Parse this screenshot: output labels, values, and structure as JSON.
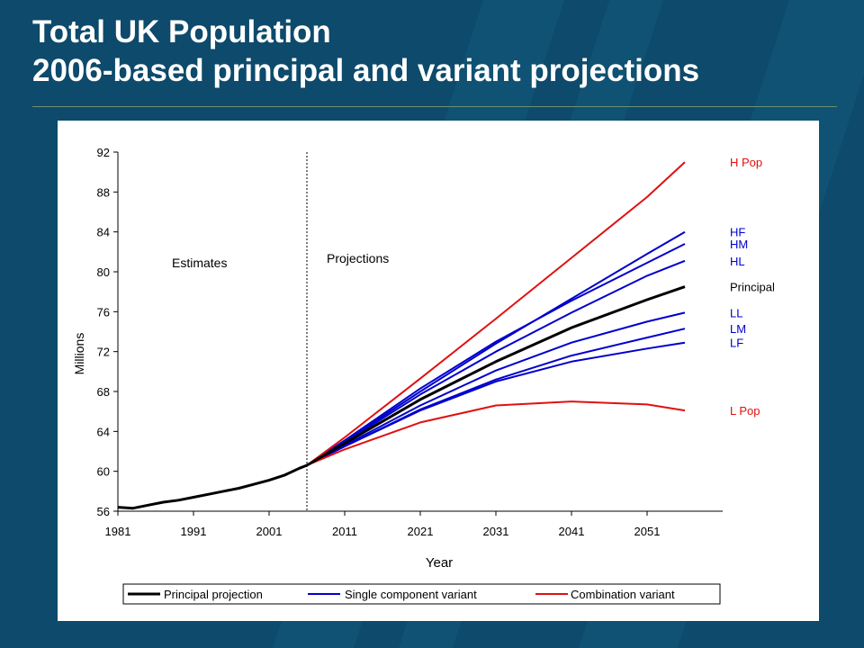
{
  "slide": {
    "title_line1": "Total UK Population",
    "title_line2": "2006-based principal and variant projections"
  },
  "colors": {
    "background": "#0d4a6b",
    "title_text": "#ffffff",
    "principal": "#000000",
    "single_component": "#0000cc",
    "combination": "#e01010"
  },
  "chart_data": {
    "type": "line",
    "title": "",
    "xlabel": "Year",
    "ylabel": "Millions",
    "xlim": [
      1981,
      2061
    ],
    "ylim": [
      56,
      92
    ],
    "xticks": [
      1981,
      1991,
      2001,
      2011,
      2021,
      2031,
      2041,
      2051
    ],
    "yticks": [
      56,
      60,
      64,
      68,
      72,
      76,
      80,
      84,
      88,
      92
    ],
    "grid": false,
    "divider_year": 2006,
    "annotations": {
      "left": "Estimates",
      "right": "Projections"
    },
    "legend": {
      "placement": "bottom",
      "entries": [
        {
          "label": "Principal projection",
          "color": "#000000"
        },
        {
          "label": "Single component variant",
          "color": "#0000cc"
        },
        {
          "label": "Combination variant",
          "color": "#e01010"
        }
      ]
    },
    "estimates": {
      "color": "#000000",
      "points": [
        [
          1981,
          56.4
        ],
        [
          1983,
          56.3
        ],
        [
          1985,
          56.6
        ],
        [
          1987,
          56.9
        ],
        [
          1989,
          57.1
        ],
        [
          1991,
          57.4
        ],
        [
          1993,
          57.7
        ],
        [
          1995,
          58.0
        ],
        [
          1997,
          58.3
        ],
        [
          1999,
          58.7
        ],
        [
          2001,
          59.1
        ],
        [
          2003,
          59.6
        ],
        [
          2005,
          60.3
        ],
        [
          2006,
          60.6
        ]
      ]
    },
    "series": [
      {
        "name": "H Pop",
        "group": "combination",
        "color": "#e01010",
        "width": 2,
        "points": [
          [
            2006,
            60.6
          ],
          [
            2011,
            63.4
          ],
          [
            2021,
            69.3
          ],
          [
            2031,
            75.3
          ],
          [
            2041,
            81.4
          ],
          [
            2051,
            87.5
          ],
          [
            2056,
            91.0
          ]
        ]
      },
      {
        "name": "HF",
        "group": "single",
        "color": "#0000cc",
        "width": 2,
        "points": [
          [
            2006,
            60.6
          ],
          [
            2011,
            63.0
          ],
          [
            2021,
            68.0
          ],
          [
            2031,
            72.8
          ],
          [
            2041,
            77.3
          ],
          [
            2051,
            81.8
          ],
          [
            2056,
            84.0
          ]
        ]
      },
      {
        "name": "HM",
        "group": "single",
        "color": "#0000cc",
        "width": 2,
        "points": [
          [
            2006,
            60.6
          ],
          [
            2011,
            63.1
          ],
          [
            2021,
            68.3
          ],
          [
            2031,
            73.0
          ],
          [
            2041,
            77.1
          ],
          [
            2051,
            80.9
          ],
          [
            2056,
            82.8
          ]
        ]
      },
      {
        "name": "HL",
        "group": "single",
        "color": "#0000cc",
        "width": 2,
        "points": [
          [
            2006,
            60.6
          ],
          [
            2011,
            62.9
          ],
          [
            2021,
            67.7
          ],
          [
            2031,
            72.0
          ],
          [
            2041,
            75.9
          ],
          [
            2051,
            79.6
          ],
          [
            2056,
            81.1
          ]
        ]
      },
      {
        "name": "Principal",
        "group": "principal",
        "color": "#000000",
        "width": 3,
        "points": [
          [
            2006,
            60.6
          ],
          [
            2011,
            62.8
          ],
          [
            2021,
            67.2
          ],
          [
            2031,
            71.0
          ],
          [
            2041,
            74.4
          ],
          [
            2051,
            77.2
          ],
          [
            2056,
            78.5
          ]
        ]
      },
      {
        "name": "LL",
        "group": "single",
        "color": "#0000cc",
        "width": 2,
        "points": [
          [
            2006,
            60.6
          ],
          [
            2011,
            62.6
          ],
          [
            2021,
            66.6
          ],
          [
            2031,
            70.1
          ],
          [
            2041,
            72.9
          ],
          [
            2051,
            75.0
          ],
          [
            2056,
            75.9
          ]
        ]
      },
      {
        "name": "LM",
        "group": "single",
        "color": "#0000cc",
        "width": 2,
        "points": [
          [
            2006,
            60.6
          ],
          [
            2011,
            62.5
          ],
          [
            2021,
            66.2
          ],
          [
            2031,
            69.2
          ],
          [
            2041,
            71.6
          ],
          [
            2051,
            73.4
          ],
          [
            2056,
            74.3
          ]
        ]
      },
      {
        "name": "LF",
        "group": "single",
        "color": "#0000cc",
        "width": 2,
        "points": [
          [
            2006,
            60.6
          ],
          [
            2011,
            62.5
          ],
          [
            2021,
            66.1
          ],
          [
            2031,
            69.0
          ],
          [
            2041,
            71.0
          ],
          [
            2051,
            72.3
          ],
          [
            2056,
            72.9
          ]
        ]
      },
      {
        "name": "L Pop",
        "group": "combination",
        "color": "#e01010",
        "width": 2,
        "points": [
          [
            2006,
            60.6
          ],
          [
            2011,
            62.2
          ],
          [
            2021,
            64.9
          ],
          [
            2031,
            66.6
          ],
          [
            2041,
            67.0
          ],
          [
            2051,
            66.7
          ],
          [
            2056,
            66.1
          ]
        ]
      }
    ]
  }
}
